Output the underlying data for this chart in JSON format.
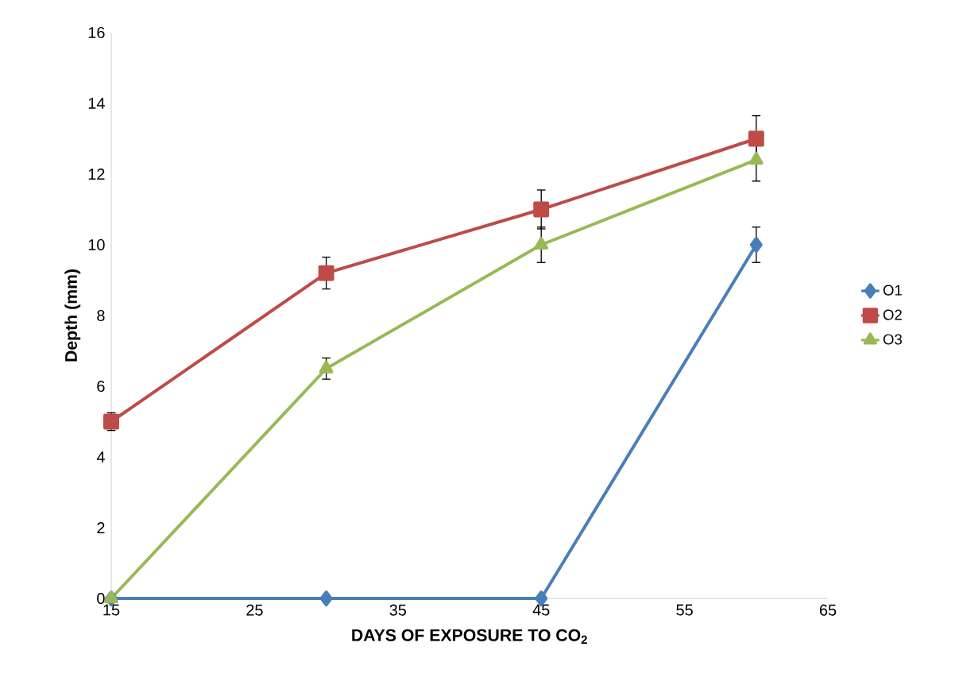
{
  "chart_data": {
    "type": "line",
    "xlabel": "DAYS OF EXPOSURE TO CO$_{2}$",
    "ylabel": "Depth (mm)",
    "x": [
      15,
      30,
      45,
      60
    ],
    "series": [
      {
        "name": "O1",
        "color": "#4a7ebb",
        "marker": "diamond",
        "values": [
          0,
          0,
          0,
          10
        ],
        "errors": [
          null,
          null,
          null,
          0.5
        ]
      },
      {
        "name": "O2",
        "color": "#be4b48",
        "marker": "square",
        "values": [
          5,
          9.2,
          11,
          13
        ],
        "errors": [
          0.25,
          0.45,
          0.55,
          0.65
        ]
      },
      {
        "name": "O3",
        "color": "#98b954",
        "marker": "triangle",
        "values": [
          0,
          6.5,
          10,
          12.4
        ],
        "errors": [
          null,
          0.3,
          0.5,
          0.6
        ]
      }
    ],
    "xlim": [
      15,
      65
    ],
    "xticks": [
      15,
      25,
      35,
      45,
      55,
      65
    ],
    "ylim": [
      0,
      16
    ],
    "yticks": [
      0,
      2,
      4,
      6,
      8,
      10,
      12,
      14,
      16
    ],
    "grid": false,
    "legend": "right",
    "line_style": "solid"
  }
}
